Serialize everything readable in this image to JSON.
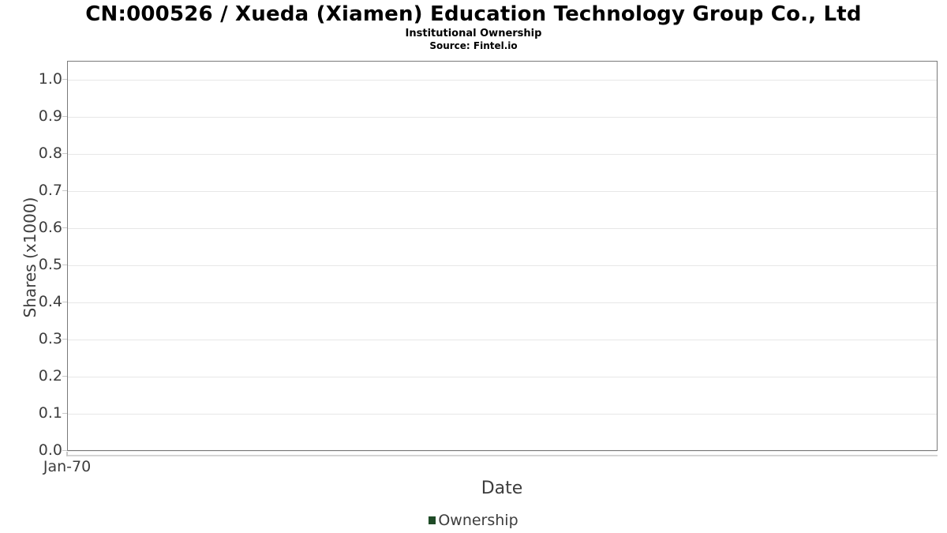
{
  "chart_data": {
    "type": "line",
    "title": "CN:000526 / Xueda (Xiamen) Education Technology Group Co., Ltd",
    "subtitle": "Institutional Ownership",
    "source": "Source: Fintel.io",
    "xlabel": "Date",
    "ylabel": "Shares (x1000)",
    "x_ticks": [
      "Jan-70"
    ],
    "y_ticks": [
      "0.0",
      "0.1",
      "0.2",
      "0.3",
      "0.4",
      "0.5",
      "0.6",
      "0.7",
      "0.8",
      "0.9",
      "1.0"
    ],
    "ylim": [
      0.0,
      1.05
    ],
    "grid": true,
    "legend_position": "bottom-center",
    "series": [
      {
        "name": "Ownership",
        "color": "#1f4b27",
        "x": [],
        "values": []
      }
    ]
  },
  "colors": {
    "grid": "#e7e7e7",
    "axis_border": "#7a7a7a",
    "tick": "#c9c9c9",
    "x_axis_line": "#d4d4d4",
    "text": "#3d3d3d",
    "title": "#000000",
    "legend_swatch": "#1f4b27"
  }
}
